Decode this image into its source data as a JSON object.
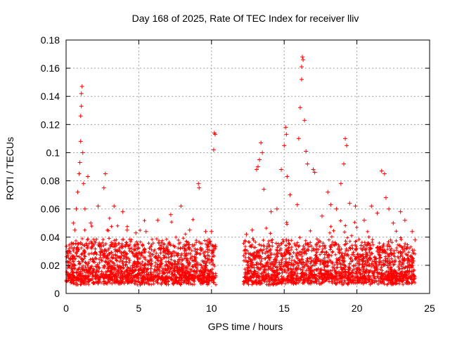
{
  "chart_data": {
    "type": "scatter",
    "title": "Day 168 of 2025, Rate Of TEC Index for receiver lliv",
    "xlabel": "GPS time / hours",
    "ylabel": "ROTI / TECUs",
    "xlim": [
      0,
      25
    ],
    "ylim": [
      0,
      0.18
    ],
    "x_ticks": [
      0,
      5,
      10,
      15,
      20,
      25
    ],
    "x_tick_labels": [
      "0",
      "5",
      "10",
      "15",
      "20",
      "25"
    ],
    "y_ticks": [
      0,
      0.02,
      0.04,
      0.06,
      0.08,
      0.1,
      0.12,
      0.14,
      0.16,
      0.18
    ],
    "y_tick_labels": [
      "0",
      "0.02",
      "0.04",
      "0.06",
      "0.08",
      "0.1",
      "0.12",
      "0.14",
      "0.16",
      "0.18"
    ],
    "grid": true,
    "marker": "+",
    "color": "#ff0000",
    "data_gap_hours": [
      10.3,
      12.2
    ],
    "series": [
      {
        "name": "ROTI",
        "points": [
          [
            0.1,
            0.022
          ],
          [
            0.2,
            0.03
          ],
          [
            0.3,
            0.025
          ],
          [
            0.4,
            0.035
          ],
          [
            0.5,
            0.05
          ],
          [
            0.6,
            0.045
          ],
          [
            0.7,
            0.06
          ],
          [
            0.8,
            0.072
          ],
          [
            0.9,
            0.085
          ],
          [
            0.95,
            0.093
          ],
          [
            1.0,
            0.108
          ],
          [
            1.0,
            0.126
          ],
          [
            1.05,
            0.133
          ],
          [
            1.05,
            0.142
          ],
          [
            1.1,
            0.147
          ],
          [
            1.15,
            0.1
          ],
          [
            1.2,
            0.078
          ],
          [
            1.3,
            0.06
          ],
          [
            1.5,
            0.083
          ],
          [
            1.7,
            0.05
          ],
          [
            2.2,
            0.062
          ],
          [
            2.7,
            0.085
          ],
          [
            2.6,
            0.075
          ],
          [
            3.3,
            0.062
          ],
          [
            3.9,
            0.058
          ],
          [
            4.2,
            0.045
          ],
          [
            4.8,
            0.043
          ],
          [
            5.5,
            0.044
          ],
          [
            6.3,
            0.052
          ],
          [
            7.2,
            0.056
          ],
          [
            7.9,
            0.062
          ],
          [
            8.5,
            0.045
          ],
          [
            9.1,
            0.078
          ],
          [
            9.15,
            0.075
          ],
          [
            9.6,
            0.044
          ],
          [
            10.2,
            0.114
          ],
          [
            10.25,
            0.113
          ],
          [
            10.15,
            0.102
          ],
          [
            10.0,
            0.044
          ],
          [
            12.4,
            0.042
          ],
          [
            12.8,
            0.045
          ],
          [
            13.1,
            0.088
          ],
          [
            13.2,
            0.09
          ],
          [
            13.3,
            0.095
          ],
          [
            13.4,
            0.107
          ],
          [
            13.5,
            0.1
          ],
          [
            13.6,
            0.074
          ],
          [
            14.1,
            0.058
          ],
          [
            14.5,
            0.06
          ],
          [
            14.8,
            0.088
          ],
          [
            15.0,
            0.105
          ],
          [
            15.1,
            0.118
          ],
          [
            15.15,
            0.113
          ],
          [
            15.2,
            0.083
          ],
          [
            15.4,
            0.07
          ],
          [
            15.9,
            0.063
          ],
          [
            16.0,
            0.11
          ],
          [
            16.1,
            0.132
          ],
          [
            16.2,
            0.152
          ],
          [
            16.2,
            0.161
          ],
          [
            16.25,
            0.168
          ],
          [
            16.3,
            0.166
          ],
          [
            16.4,
            0.123
          ],
          [
            16.5,
            0.101
          ],
          [
            16.6,
            0.092
          ],
          [
            17.0,
            0.088
          ],
          [
            17.1,
            0.086
          ],
          [
            17.6,
            0.055
          ],
          [
            18.0,
            0.072
          ],
          [
            18.2,
            0.063
          ],
          [
            18.6,
            0.06
          ],
          [
            18.9,
            0.078
          ],
          [
            19.1,
            0.092
          ],
          [
            19.2,
            0.11
          ],
          [
            19.3,
            0.105
          ],
          [
            19.5,
            0.064
          ],
          [
            19.9,
            0.062
          ],
          [
            20.5,
            0.052
          ],
          [
            21.0,
            0.062
          ],
          [
            21.4,
            0.057
          ],
          [
            21.7,
            0.087
          ],
          [
            21.9,
            0.085
          ],
          [
            22.0,
            0.068
          ],
          [
            22.2,
            0.06
          ],
          [
            22.5,
            0.05
          ],
          [
            23.0,
            0.058
          ],
          [
            23.3,
            0.052
          ],
          [
            23.8,
            0.044
          ],
          [
            24.0,
            0.038
          ]
        ]
      }
    ]
  }
}
